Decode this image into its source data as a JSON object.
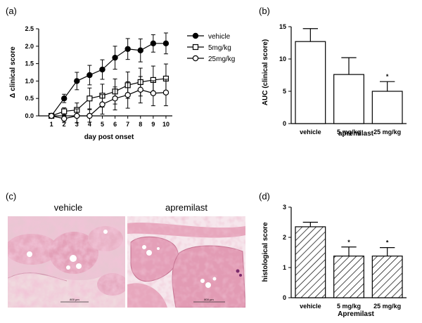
{
  "panels": {
    "a": "(a)",
    "b": "(b)",
    "c": "(c)",
    "d": "(d)"
  },
  "photos": {
    "left_title": "vehicle",
    "right_title": "apremilast",
    "left_scale": "800 µm",
    "right_scale": "800 µm"
  },
  "chart_data": [
    {
      "type": "line",
      "panel": "(a)",
      "xlabel": "day post onset",
      "ylabel": "Δ clinical score",
      "x": [
        1,
        2,
        3,
        4,
        5,
        6,
        7,
        8,
        9,
        10
      ],
      "xlim": [
        0,
        10.5
      ],
      "ylim": [
        0,
        2.5
      ],
      "xticks": [
        1,
        2,
        3,
        4,
        5,
        6,
        7,
        8,
        9,
        10
      ],
      "yticks": [
        0.0,
        0.5,
        1.0,
        1.5,
        2.0,
        2.5
      ],
      "ytick_labels": [
        "0.0",
        "0.5",
        "1.0",
        "1.5",
        "2.0",
        "2.5"
      ],
      "legend_position": "top-right",
      "series": [
        {
          "name": "vehicle",
          "marker": "filled-circle",
          "values": [
            0,
            0.5,
            1.0,
            1.17,
            1.33,
            1.67,
            1.92,
            1.88,
            2.08,
            2.08
          ],
          "errors": [
            0,
            0.12,
            0.25,
            0.28,
            0.28,
            0.33,
            0.3,
            0.33,
            0.25,
            0.3
          ]
        },
        {
          "name": "5mg/kg",
          "marker": "open-square",
          "values": [
            0,
            0.13,
            0.17,
            0.5,
            0.58,
            0.7,
            0.88,
            0.97,
            1.03,
            1.07
          ],
          "errors": [
            0,
            0.1,
            0.2,
            0.3,
            0.33,
            0.36,
            0.38,
            0.4,
            0.4,
            0.42
          ]
        },
        {
          "name": "25mg/kg",
          "marker": "open-circle",
          "values": [
            0,
            -0.08,
            0.0,
            0.0,
            0.33,
            0.5,
            0.6,
            0.75,
            0.65,
            0.67
          ],
          "errors": [
            0,
            0.1,
            0.2,
            0.18,
            0.28,
            0.33,
            0.38,
            0.38,
            0.36,
            0.38
          ]
        }
      ]
    },
    {
      "type": "bar",
      "panel": "(b)",
      "xlabel": "apremilast",
      "ylabel": "AUC (clinical score)",
      "categories": [
        "vehicle",
        "5 mg/kg",
        "25 mg/kg"
      ],
      "values": [
        12.7,
        7.6,
        5.0
      ],
      "errors": [
        2.0,
        2.6,
        1.5
      ],
      "significance": [
        "",
        "",
        "*"
      ],
      "ylim": [
        0,
        15
      ],
      "yticks": [
        0,
        5,
        10,
        15
      ],
      "fill": "white"
    },
    {
      "type": "bar",
      "panel": "(d)",
      "xlabel": "Apremilast",
      "ylabel": "histological score",
      "categories": [
        "vehicle",
        "5 mg/kg",
        "25 mg/kg"
      ],
      "values": [
        2.35,
        1.38,
        1.38
      ],
      "errors": [
        0.15,
        0.3,
        0.28
      ],
      "significance": [
        "",
        "*",
        "*"
      ],
      "ylim": [
        0,
        3
      ],
      "yticks": [
        0,
        1,
        2,
        3
      ],
      "fill": "hatched"
    }
  ]
}
